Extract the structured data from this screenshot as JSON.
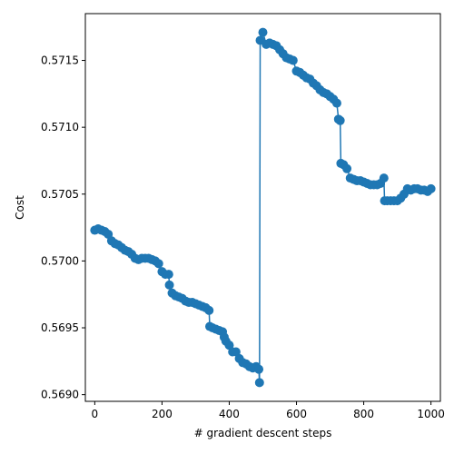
{
  "chart_data": {
    "type": "line",
    "title": "",
    "xlabel": "# gradient descent steps",
    "ylabel": "Cost",
    "xlim": [
      -28,
      1028
    ],
    "ylim": [
      0.56895,
      0.57185
    ],
    "xticks": [
      0,
      200,
      400,
      600,
      800,
      1000
    ],
    "yticks": [
      0.569,
      0.5695,
      0.57,
      0.5705,
      0.571,
      0.5715
    ],
    "ytick_labels": [
      "0.5690",
      "0.5695",
      "0.5700",
      "0.5705",
      "0.5710",
      "0.5715"
    ],
    "grid": false,
    "legend": "none",
    "series_color": "#1f77b4",
    "marker": "circle",
    "series": [
      {
        "x": [
          0,
          10,
          20,
          30,
          40,
          50,
          60,
          70,
          80,
          90,
          100,
          110,
          120,
          130,
          140,
          150,
          160,
          170,
          180,
          190,
          200,
          210,
          220,
          222,
          230,
          240,
          250,
          260,
          270,
          280,
          290,
          300,
          310,
          320,
          330,
          340,
          342,
          350,
          360,
          370,
          380,
          385,
          390,
          400,
          410,
          420,
          430,
          440,
          450,
          460,
          470,
          480,
          488,
          490,
          492,
          500,
          510,
          520,
          530,
          540,
          550,
          560,
          570,
          580,
          590,
          600,
          610,
          620,
          630,
          640,
          650,
          660,
          670,
          680,
          690,
          700,
          710,
          720,
          725,
          730,
          732,
          740,
          750,
          760,
          770,
          780,
          790,
          800,
          810,
          820,
          830,
          840,
          850,
          860,
          862,
          870,
          880,
          890,
          900,
          910,
          920,
          930,
          940,
          950,
          960,
          970,
          980,
          990,
          1000
        ],
        "y": [
          0.57023,
          0.57024,
          0.57023,
          0.57022,
          0.5702,
          0.57015,
          0.57013,
          0.57012,
          0.5701,
          0.57008,
          0.57007,
          0.57005,
          0.57002,
          0.57001,
          0.57002,
          0.57002,
          0.57002,
          0.57001,
          0.57,
          0.56998,
          0.56992,
          0.5699,
          0.5699,
          0.56982,
          0.56976,
          0.56974,
          0.56973,
          0.56972,
          0.5697,
          0.56969,
          0.56969,
          0.56968,
          0.56967,
          0.56966,
          0.56965,
          0.56963,
          0.56951,
          0.5695,
          0.56949,
          0.56948,
          0.56947,
          0.56943,
          0.5694,
          0.56937,
          0.56932,
          0.56932,
          0.56927,
          0.56924,
          0.56923,
          0.56921,
          0.5692,
          0.56921,
          0.56919,
          0.56909,
          0.57165,
          0.57171,
          0.57162,
          0.57163,
          0.57162,
          0.57161,
          0.57158,
          0.57155,
          0.57152,
          0.57151,
          0.5715,
          0.57142,
          0.57141,
          0.57139,
          0.57137,
          0.57136,
          0.57133,
          0.57131,
          0.57128,
          0.57126,
          0.57125,
          0.57123,
          0.57121,
          0.57118,
          0.57106,
          0.57105,
          0.57073,
          0.57072,
          0.57069,
          0.57062,
          0.57061,
          0.5706,
          0.5706,
          0.57059,
          0.57058,
          0.57057,
          0.57057,
          0.57057,
          0.57058,
          0.57062,
          0.57045,
          0.57045,
          0.57045,
          0.57045,
          0.57045,
          0.57047,
          0.5705,
          0.57054,
          0.57053,
          0.57054,
          0.57054,
          0.57053,
          0.57053,
          0.57052,
          0.57054
        ]
      }
    ]
  }
}
